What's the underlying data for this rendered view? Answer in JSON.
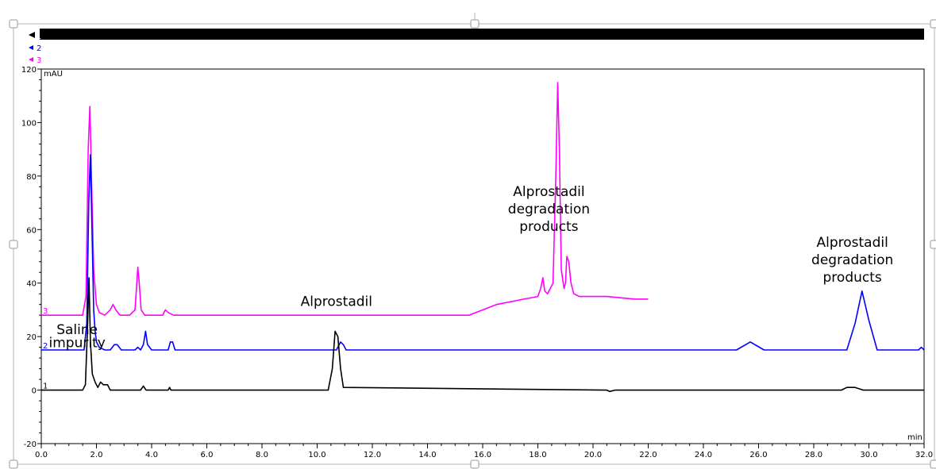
{
  "chart_data": {
    "type": "line",
    "ylabel": "mAU",
    "xlabel": "min",
    "xlim": [
      0,
      32
    ],
    "ylim": [
      -20,
      120
    ],
    "xticks": [
      "0.0",
      "2.0",
      "4.0",
      "6.0",
      "8.0",
      "10.0",
      "12.0",
      "14.0",
      "16.0",
      "18.0",
      "20.0",
      "22.0",
      "24.0",
      "26.0",
      "28.0",
      "30.0",
      "32.0"
    ],
    "yticks": [
      "-20",
      "0",
      "20",
      "40",
      "60",
      "80",
      "100",
      "120"
    ],
    "legend": [
      "1",
      "2",
      "3"
    ],
    "series": [
      {
        "name": "1",
        "color": "#000000",
        "x": [
          0,
          1.5,
          1.6,
          1.68,
          1.73,
          1.78,
          1.85,
          1.95,
          2.05,
          2.15,
          2.25,
          2.4,
          2.5,
          3.6,
          3.7,
          3.8,
          4.6,
          4.65,
          4.7,
          10.4,
          10.55,
          10.65,
          10.75,
          10.85,
          10.95,
          20.5,
          20.6,
          20.8,
          29.0,
          29.2,
          29.5,
          29.8,
          32
        ],
        "y": [
          0,
          0,
          2,
          25,
          42,
          18,
          6,
          3,
          1,
          3,
          2,
          2,
          0,
          0,
          1.5,
          0,
          0,
          1,
          0,
          0,
          8,
          22,
          20,
          8,
          1,
          0,
          -0.5,
          0,
          0,
          1,
          1,
          0,
          0
        ]
      },
      {
        "name": "2",
        "color": "#0000ff",
        "x": [
          0,
          1.55,
          1.65,
          1.72,
          1.78,
          1.84,
          1.9,
          1.95,
          2.0,
          2.1,
          2.3,
          2.5,
          2.65,
          2.75,
          2.9,
          3.4,
          3.5,
          3.6,
          3.7,
          3.78,
          3.85,
          4.0,
          4.6,
          4.68,
          4.76,
          4.85,
          10.7,
          10.85,
          10.95,
          11.05,
          25.2,
          25.7,
          26.2,
          29.2,
          29.5,
          29.75,
          30.0,
          30.3,
          30.6,
          31.8,
          31.9,
          32
        ],
        "y": [
          15,
          15,
          25,
          70,
          88,
          60,
          30,
          22,
          18,
          16,
          15,
          15,
          17,
          17,
          15,
          15,
          16,
          15,
          17,
          22,
          17,
          15,
          15,
          18,
          18,
          15,
          15,
          18,
          17,
          15,
          15,
          18,
          15,
          15,
          25,
          37,
          26,
          15,
          15,
          15,
          16,
          15
        ]
      },
      {
        "name": "3",
        "color": "#ff00ff",
        "x": [
          0,
          1.5,
          1.62,
          1.7,
          1.76,
          1.82,
          1.9,
          1.95,
          2.0,
          2.1,
          2.3,
          2.5,
          2.6,
          2.7,
          2.85,
          3.2,
          3.4,
          3.5,
          3.55,
          3.62,
          3.75,
          4.4,
          4.5,
          4.6,
          4.8,
          15.5,
          16.5,
          17.5,
          18.0,
          18.1,
          18.18,
          18.25,
          18.35,
          18.55,
          18.65,
          18.72,
          18.78,
          18.85,
          18.95,
          19.0,
          19.05,
          19.12,
          19.2,
          19.3,
          19.5,
          20.5,
          21.5,
          22.0
        ],
        "y": [
          28,
          28,
          35,
          90,
          106,
          80,
          45,
          38,
          32,
          29,
          28,
          30,
          32,
          30,
          28,
          28,
          30,
          46,
          40,
          30,
          28,
          28,
          30,
          29,
          28,
          28,
          32,
          34,
          35,
          38,
          42,
          37,
          36,
          40,
          80,
          115,
          90,
          45,
          38,
          40,
          50,
          48,
          40,
          36,
          35,
          35,
          34,
          34
        ]
      }
    ],
    "annotations": [
      {
        "text": "Saline",
        "x": 1.3,
        "y": 21
      },
      {
        "text": "impurity",
        "x": 1.3,
        "y": 16
      },
      {
        "text": "Alprostadil",
        "x": 10.7,
        "y": 31.5
      },
      {
        "text": "Alprostadil",
        "x": 18.4,
        "y": 72.5
      },
      {
        "text": "degradation",
        "x": 18.4,
        "y": 66
      },
      {
        "text": "products",
        "x": 18.4,
        "y": 59.5
      },
      {
        "text": "Alprostadil",
        "x": 29.4,
        "y": 53.5
      },
      {
        "text": "degradation",
        "x": 29.4,
        "y": 47
      },
      {
        "text": "products",
        "x": 29.4,
        "y": 40.5
      }
    ]
  }
}
